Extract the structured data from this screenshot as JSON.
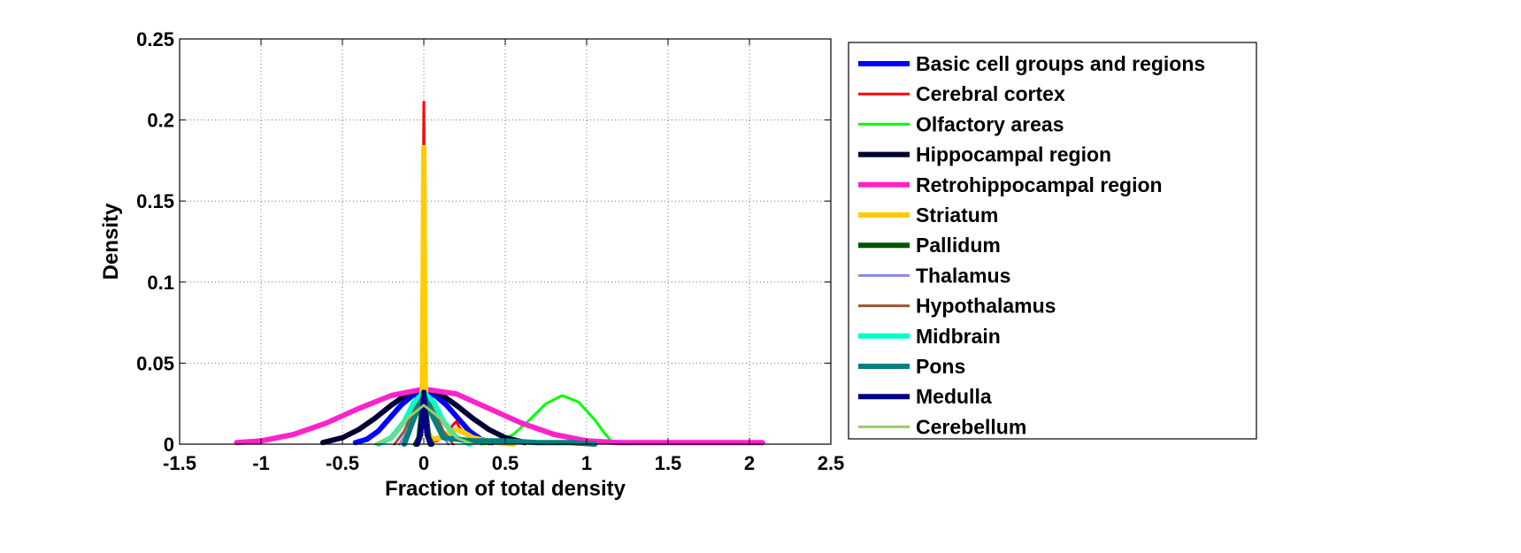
{
  "chart_data": {
    "type": "line",
    "title": "",
    "xlabel": "Fraction of total density",
    "ylabel": "Density",
    "xlim": [
      -1.5,
      2.5
    ],
    "ylim": [
      0,
      0.25
    ],
    "xticks": [
      -1.5,
      -1,
      -0.5,
      0,
      0.5,
      1,
      1.5,
      2,
      2.5
    ],
    "xtick_labels": [
      "-1.5",
      "-1",
      "-0.5",
      "0",
      "0.5",
      "1",
      "1.5",
      "2",
      "2.5"
    ],
    "yticks": [
      0,
      0.05,
      0.1,
      0.15,
      0.2,
      0.25
    ],
    "ytick_labels": [
      "0",
      "0.05",
      "0.1",
      "0.15",
      "0.2",
      "0.25"
    ],
    "grid": true,
    "legend_position": "outside-right",
    "series": [
      {
        "name": "Basic cell groups and regions",
        "color": "#0000ff",
        "width": "thick",
        "x": [
          -0.42,
          -0.35,
          -0.28,
          -0.21,
          -0.14,
          -0.07,
          0,
          0.07,
          0.14,
          0.21,
          0.28,
          0.35,
          0.42
        ],
        "y": [
          0.001,
          0.003,
          0.008,
          0.016,
          0.024,
          0.03,
          0.032,
          0.03,
          0.024,
          0.016,
          0.008,
          0.003,
          0.001
        ]
      },
      {
        "name": "Cerebral cortex",
        "color": "#ff0000",
        "width": "thin",
        "x": [
          -0.03,
          -0.02,
          -0.01,
          -0.005,
          0,
          0.005,
          0.01,
          0.02,
          0.03,
          0.08,
          0.14,
          0.18,
          0.2,
          0.22,
          0.26,
          0.32,
          0.4
        ],
        "y": [
          0,
          0.004,
          0.04,
          0.12,
          0.211,
          0.12,
          0.04,
          0.006,
          0.001,
          0.002,
          0.006,
          0.012,
          0.014,
          0.01,
          0.006,
          0.003,
          0
        ]
      },
      {
        "name": "Olfactory areas",
        "color": "#00ff00",
        "width": "thin",
        "x": [
          0.35,
          0.45,
          0.55,
          0.65,
          0.75,
          0.85,
          0.95,
          1.05,
          1.1,
          1.15,
          1.25
        ],
        "y": [
          0,
          0.001,
          0.006,
          0.015,
          0.025,
          0.03,
          0.026,
          0.015,
          0.008,
          0.002,
          0
        ]
      },
      {
        "name": "Hippocampal region",
        "color": "#000033",
        "width": "thick",
        "x": [
          -0.62,
          -0.5,
          -0.4,
          -0.3,
          -0.2,
          -0.1,
          0,
          0.1,
          0.2,
          0.3,
          0.4,
          0.5,
          0.62
        ],
        "y": [
          0.001,
          0.004,
          0.009,
          0.016,
          0.024,
          0.031,
          0.034,
          0.031,
          0.024,
          0.016,
          0.009,
          0.004,
          0.001
        ]
      },
      {
        "name": "Retrohippocampal region",
        "color": "#ff22cc",
        "width": "thick",
        "x": [
          -1.15,
          -1.0,
          -0.8,
          -0.6,
          -0.4,
          -0.2,
          0,
          0.2,
          0.4,
          0.6,
          0.8,
          1.0,
          1.2,
          1.5,
          1.8,
          2.08
        ],
        "y": [
          0.001,
          0.002,
          0.006,
          0.013,
          0.022,
          0.03,
          0.034,
          0.031,
          0.022,
          0.013,
          0.006,
          0.002,
          0.001,
          0.001,
          0.001,
          0.001
        ]
      },
      {
        "name": "Striatum",
        "color": "#ffcc00",
        "width": "thick",
        "x": [
          -0.05,
          -0.02,
          -0.008,
          -0.003,
          0,
          0.003,
          0.008,
          0.02,
          0.05,
          0.1,
          0.15,
          0.2,
          0.25,
          0.3,
          0.38,
          0.45,
          0.55
        ],
        "y": [
          0,
          0.004,
          0.04,
          0.12,
          0.183,
          0.12,
          0.04,
          0.008,
          0.003,
          0.004,
          0.007,
          0.009,
          0.007,
          0.004,
          0.002,
          0.001,
          0
        ]
      },
      {
        "name": "Pallidum",
        "color": "#005500",
        "width": "thick",
        "x": [
          -0.05,
          -0.03,
          -0.015,
          0,
          0.015,
          0.03,
          0.05
        ],
        "y": [
          0,
          0.004,
          0.018,
          0.03,
          0.018,
          0.004,
          0
        ]
      },
      {
        "name": "Thalamus",
        "color": "#8888ee",
        "width": "thin",
        "x": [
          -0.15,
          -0.1,
          -0.05,
          0,
          0.05,
          0.1,
          0.15
        ],
        "y": [
          0,
          0.008,
          0.024,
          0.031,
          0.024,
          0.008,
          0
        ]
      },
      {
        "name": "Hypothalamus",
        "color": "#a0522d",
        "width": "thin",
        "x": [
          -0.18,
          -0.12,
          -0.06,
          0,
          0.06,
          0.12,
          0.18
        ],
        "y": [
          0,
          0.008,
          0.022,
          0.03,
          0.022,
          0.008,
          0
        ]
      },
      {
        "name": "Midbrain",
        "color": "#00ffcc",
        "width": "thick",
        "x": [
          -0.28,
          -0.2,
          -0.12,
          -0.06,
          0,
          0.06,
          0.12,
          0.2,
          0.28
        ],
        "y": [
          0,
          0.004,
          0.014,
          0.026,
          0.032,
          0.026,
          0.014,
          0.004,
          0
        ]
      },
      {
        "name": "Pons",
        "color": "#008080",
        "width": "thick",
        "x": [
          -0.12,
          -0.06,
          0,
          0.06,
          0.12,
          0.3,
          0.5,
          0.7,
          0.9,
          1.05
        ],
        "y": [
          0,
          0.016,
          0.03,
          0.016,
          0.004,
          0.002,
          0.002,
          0.001,
          0.001,
          0
        ]
      },
      {
        "name": "Medulla",
        "color": "#000080",
        "width": "thick",
        "x": [
          -0.04,
          -0.02,
          -0.01,
          0,
          0.01,
          0.02,
          0.04
        ],
        "y": [
          0,
          0.006,
          0.018,
          0.032,
          0.018,
          0.006,
          0
        ]
      },
      {
        "name": "Cerebellum",
        "color": "#99cc66",
        "width": "thin",
        "x": [
          -0.3,
          -0.2,
          -0.1,
          0,
          0.1,
          0.2,
          0.3
        ],
        "y": [
          0,
          0.004,
          0.016,
          0.024,
          0.016,
          0.004,
          0
        ]
      }
    ]
  }
}
